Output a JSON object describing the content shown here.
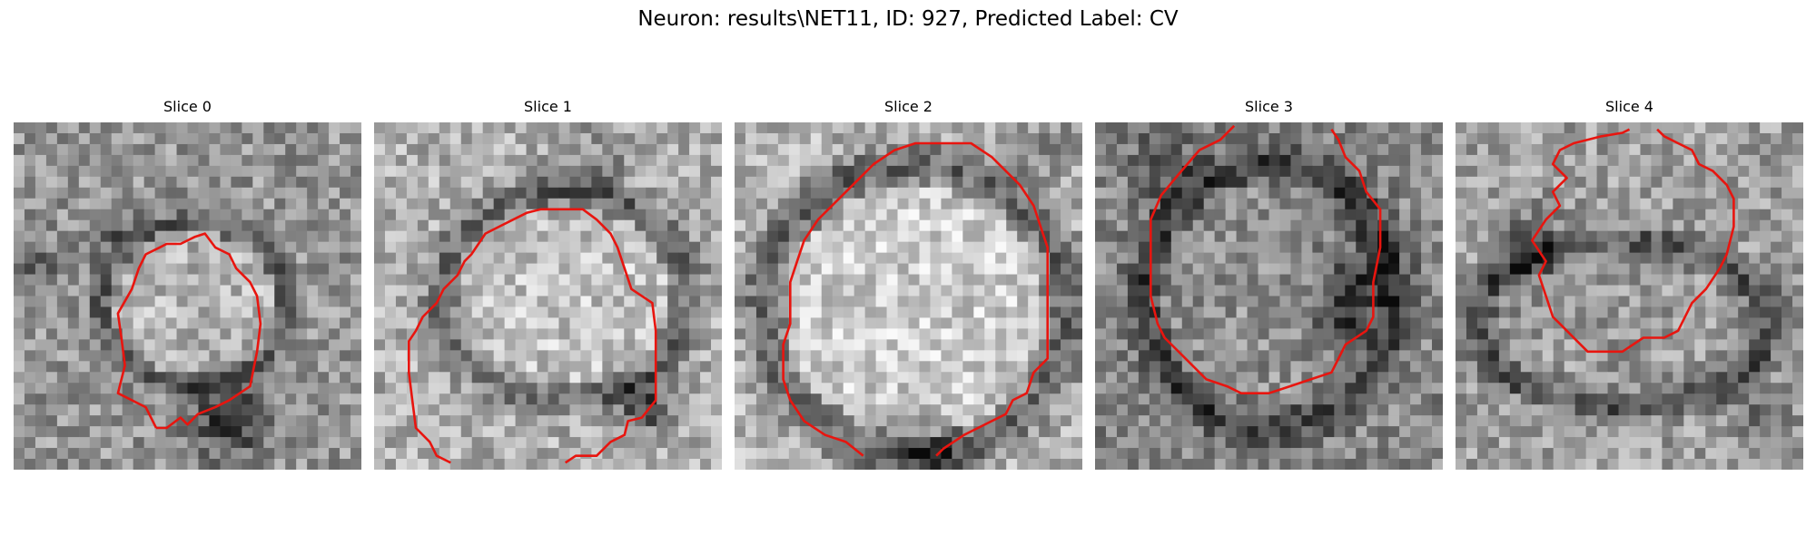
{
  "figure": {
    "title": "Neuron: results\\NET11, ID: 927, Predicted Label: CV",
    "contour_color": "#e8150f",
    "panels": [
      {
        "title": "Slice 0"
      },
      {
        "title": "Slice 1"
      },
      {
        "title": "Slice 2"
      },
      {
        "title": "Slice 3"
      },
      {
        "title": "Slice 4"
      }
    ]
  }
}
